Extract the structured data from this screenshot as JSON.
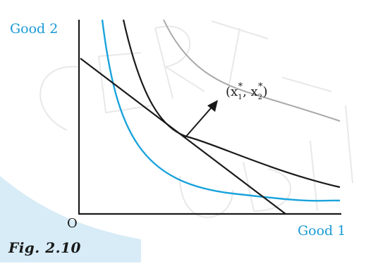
{
  "diagram": {
    "y_axis_label": "Good 2",
    "x_axis_label": "Good 1",
    "origin_label": "O",
    "optimum_label": "(x₁*, x₂*)",
    "optimum_label_parts": {
      "open": "(x",
      "sub1": "1",
      "sup1": "*",
      "mid": ", x",
      "sub2": "2",
      "sup2": "*",
      "close": ")"
    }
  },
  "caption": "Fig. 2.10",
  "colors": {
    "axis_label": "#1a9ad6",
    "indifference_low": "#1aa3dc",
    "indifference_mid": "#1a1a1a",
    "indifference_high": "#a9a9a9",
    "budget_line": "#1a1a1a",
    "band": "#d8ecf7",
    "watermark": "#e6e6e6"
  }
}
